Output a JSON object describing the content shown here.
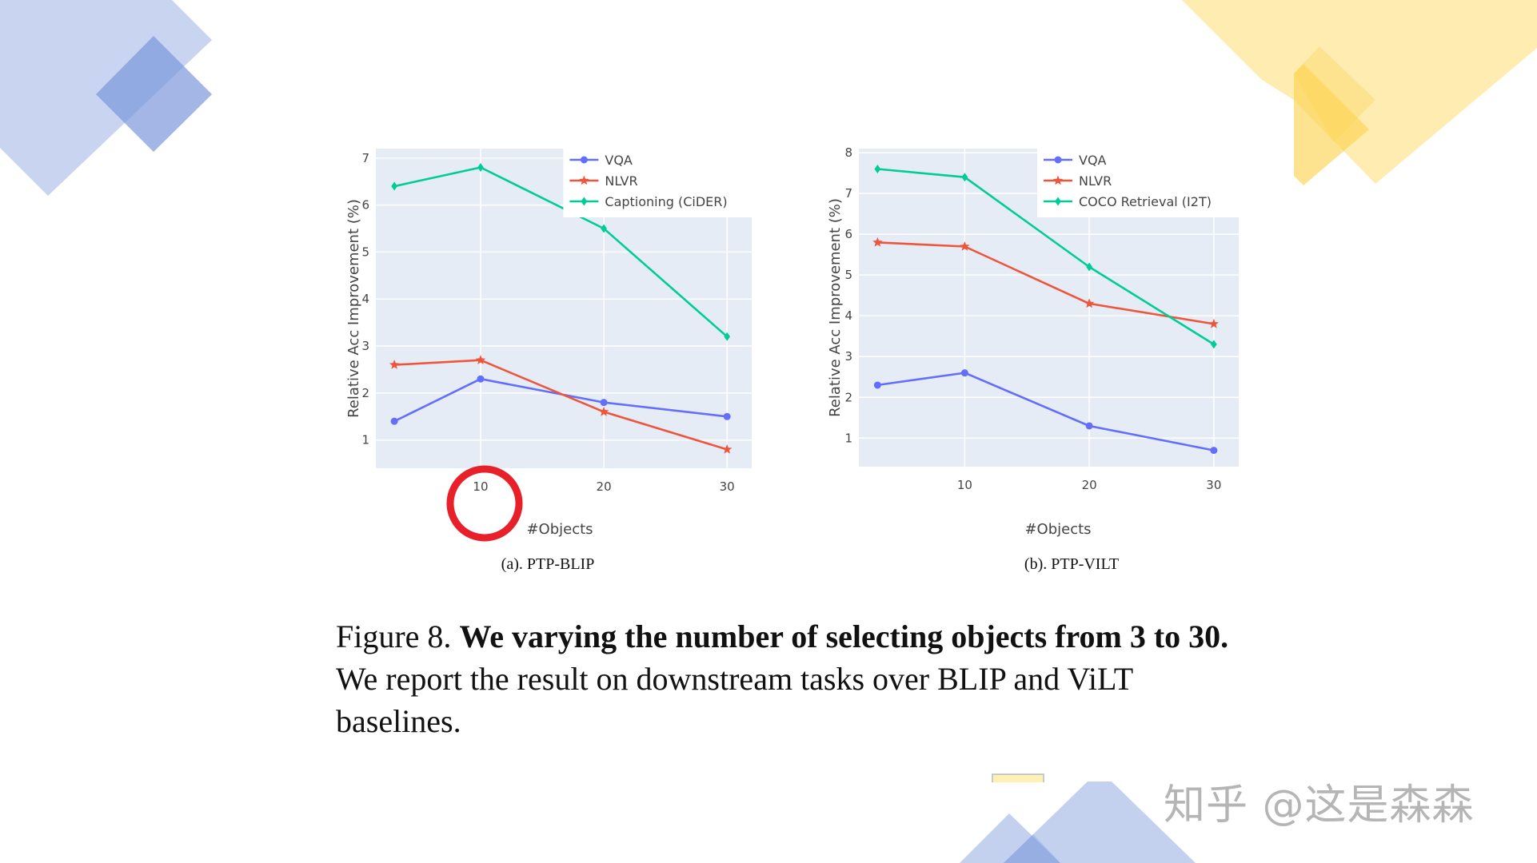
{
  "colors": {
    "vqa": "#636efa",
    "nlvr": "#ef553b",
    "third": "#00cc96",
    "highlight": "#e8202a",
    "deco_blue": "#7b98dc",
    "deco_yellow": "#fcd453"
  },
  "subcaption_a": "(a). PTP-BLIP",
  "subcaption_b": "(b). PTP-VILT",
  "caption": {
    "prefix": "Figure 8. ",
    "bold": "We varying the number of selecting objects from 3 to 30.",
    "rest": " We report the result on downstream tasks over BLIP and ViLT baselines."
  },
  "watermark": "知乎 @这是森森",
  "chart_data": [
    {
      "type": "line",
      "xlabel": "#Objects",
      "ylabel": "Relative Acc Improvement (%)",
      "xlim": [
        1.5,
        32
      ],
      "ylim": [
        0.4,
        7.2
      ],
      "xticks": [
        10,
        20,
        30
      ],
      "yticks": [
        1,
        2,
        3,
        4,
        5,
        6,
        7
      ],
      "grid": true,
      "legend": "top-right",
      "highlight": "circle around x-tick 10",
      "x": [
        3,
        10,
        20,
        30
      ],
      "series": [
        {
          "name": "VQA",
          "marker": "circle",
          "values": [
            1.4,
            2.3,
            1.8,
            1.5
          ]
        },
        {
          "name": "NLVR",
          "marker": "star",
          "values": [
            2.6,
            2.7,
            1.6,
            0.8
          ]
        },
        {
          "name": "Captioning (CiDER)",
          "marker": "diamond",
          "values": [
            6.4,
            6.8,
            5.5,
            3.2
          ]
        }
      ]
    },
    {
      "type": "line",
      "xlabel": "#Objects",
      "ylabel": "Relative Acc Improvement (%)",
      "xlim": [
        1.5,
        32
      ],
      "ylim": [
        0.3,
        8.1
      ],
      "xticks": [
        10,
        20,
        30
      ],
      "yticks": [
        1,
        2,
        3,
        4,
        5,
        6,
        7,
        8
      ],
      "grid": true,
      "legend": "top-right",
      "x": [
        3,
        10,
        20,
        30
      ],
      "series": [
        {
          "name": "VQA",
          "marker": "circle",
          "values": [
            2.3,
            2.6,
            1.3,
            0.7
          ]
        },
        {
          "name": "NLVR",
          "marker": "star",
          "values": [
            5.8,
            5.7,
            4.3,
            3.8
          ]
        },
        {
          "name": "COCO Retrieval (I2T)",
          "marker": "diamond",
          "values": [
            7.6,
            7.4,
            5.2,
            3.3
          ]
        }
      ]
    }
  ]
}
